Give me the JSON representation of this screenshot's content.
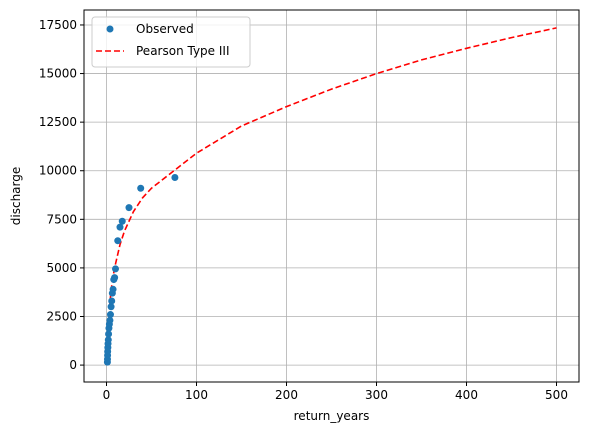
{
  "chart_data": {
    "type": "scatter",
    "xlabel": "return_years",
    "ylabel": "discharge",
    "xlim": [
      -25,
      525
    ],
    "ylim": [
      -870,
      18270
    ],
    "xticks": [
      0,
      100,
      200,
      300,
      400,
      500
    ],
    "yticks": [
      0,
      2500,
      5000,
      7500,
      10000,
      12500,
      15000,
      17500
    ],
    "grid": true,
    "legend_position": "upper-left",
    "series": [
      {
        "name": "Observed",
        "kind": "scatter",
        "color": "#1f77b4",
        "x": [
          1.0,
          1.1,
          1.2,
          1.3,
          1.5,
          1.7,
          2.0,
          2.3,
          2.7,
          3.2,
          3.8,
          4.4,
          5.1,
          5.8,
          6.5,
          7.3,
          8.1,
          9.0,
          10.0,
          12.5,
          15.0,
          17.5,
          25.0,
          38.0,
          76.0
        ],
        "y": [
          150,
          300,
          500,
          700,
          900,
          1100,
          1300,
          1600,
          1900,
          2100,
          2300,
          2600,
          3000,
          3300,
          3700,
          3900,
          4400,
          4500,
          4950,
          6400,
          7100,
          7400,
          8100,
          9100,
          9650
        ]
      },
      {
        "name": "Pearson Type III",
        "kind": "line",
        "style": "dashed",
        "color": "#ff0000",
        "x": [
          1.01,
          1.5,
          2,
          3,
          4,
          5,
          7,
          10,
          15,
          20,
          30,
          40,
          50,
          75,
          100,
          150,
          200,
          250,
          300,
          350,
          400,
          450,
          500
        ],
        "y": [
          100,
          900,
          1700,
          2700,
          3300,
          3800,
          4500,
          5200,
          6200,
          6900,
          7900,
          8600,
          9100,
          10000,
          10900,
          12300,
          13300,
          14200,
          15000,
          15700,
          16300,
          16850,
          17350
        ]
      }
    ]
  }
}
